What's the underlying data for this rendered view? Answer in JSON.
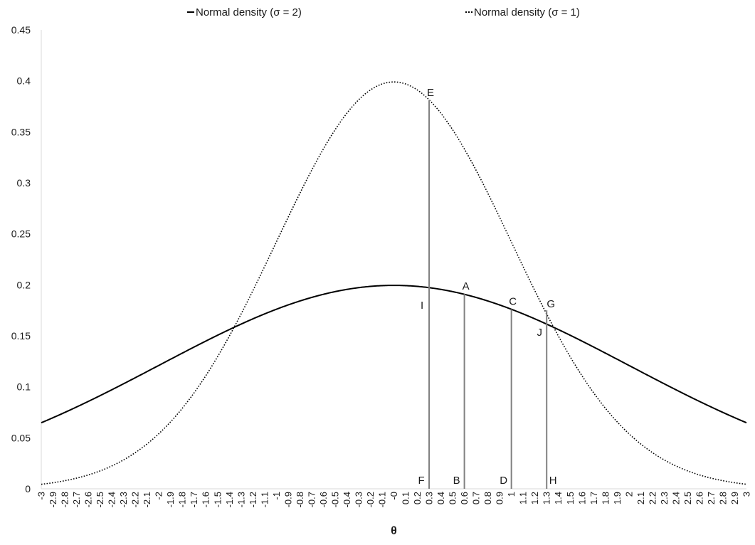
{
  "chart_data": {
    "type": "line",
    "title": "",
    "xlabel": "θ",
    "ylabel": "",
    "xlim": [
      -3,
      3
    ],
    "ylim": [
      0,
      0.45
    ],
    "x_step": 0.1,
    "ytick_labels": [
      "0",
      "0.05",
      "0.1",
      "0.15",
      "0.2",
      "0.25",
      "0.3",
      "0.35",
      "0.4",
      "0.45"
    ],
    "grid": false,
    "legend_position": "top",
    "series": [
      {
        "name": "Normal density (σ = 2)",
        "style": "solid",
        "mu": 0,
        "sigma": 2,
        "color": "#000000"
      },
      {
        "name": "Normal density (σ = 1)",
        "style": "dotted",
        "mu": 0,
        "sigma": 1,
        "color": "#000000"
      }
    ],
    "vertical_lines": [
      {
        "x": 0.3,
        "top": 0.381,
        "label_top": "E",
        "label_mid": "I",
        "label_bottom": "F"
      },
      {
        "x": 0.6,
        "top": 0.191,
        "label_top": "A",
        "label_bottom": "B"
      },
      {
        "x": 1.0,
        "top": 0.176,
        "label_top": "C",
        "label_bottom": "D"
      },
      {
        "x": 1.3,
        "top": 0.175,
        "label_top": "G",
        "label_mid": "J",
        "label_bottom": "H"
      }
    ],
    "vline_color": "#808080"
  }
}
